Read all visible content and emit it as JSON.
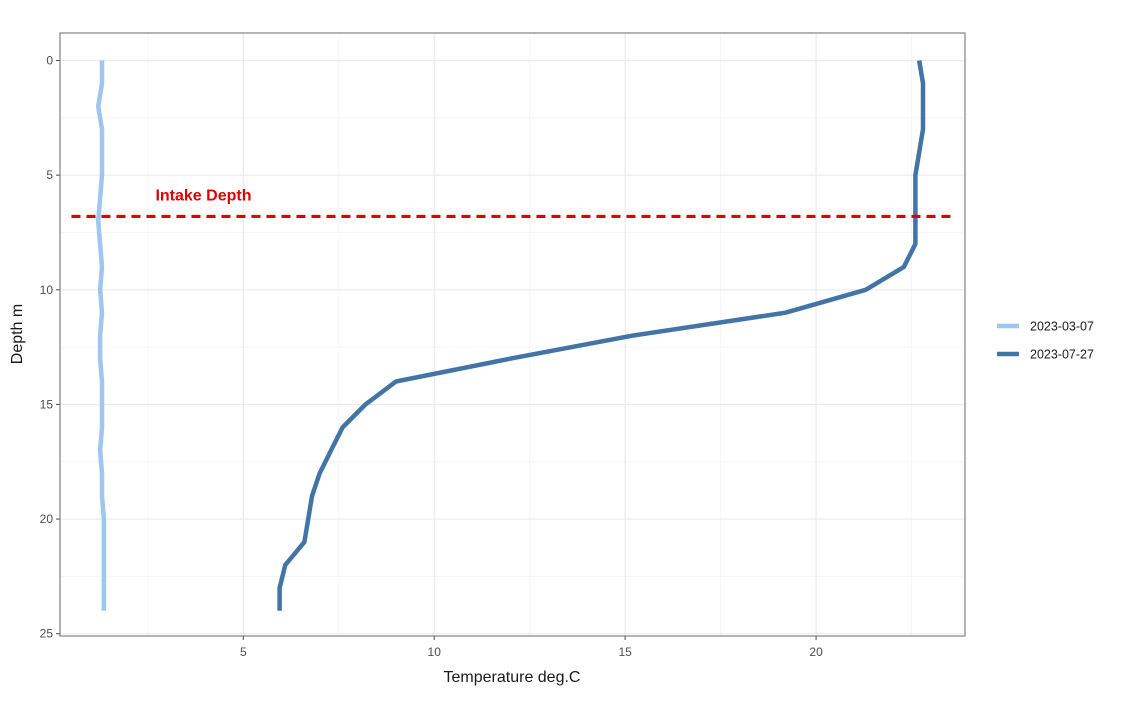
{
  "chart_data": {
    "type": "line",
    "title": "",
    "xlabel": "Temperature  deg.C",
    "ylabel": "Depth  m",
    "xlim": [
      0.2,
      23.9
    ],
    "ylim": [
      25.1,
      -1.2
    ],
    "y_reversed": true,
    "x_ticks": [
      5,
      10,
      15,
      20
    ],
    "x_tick_labels": [
      "5",
      "10",
      "15",
      "20"
    ],
    "y_ticks": [
      0,
      5,
      10,
      15,
      20,
      25
    ],
    "y_tick_labels": [
      "0",
      "5",
      "10",
      "15",
      "20",
      "25"
    ],
    "grid": true,
    "legend_position": "right",
    "series": [
      {
        "name": "2023-03-07",
        "color": "#9ec6ef",
        "points": [
          {
            "x": 1.3,
            "y": 0
          },
          {
            "x": 1.3,
            "y": 1
          },
          {
            "x": 1.2,
            "y": 2
          },
          {
            "x": 1.3,
            "y": 3
          },
          {
            "x": 1.3,
            "y": 4
          },
          {
            "x": 1.3,
            "y": 5
          },
          {
            "x": 1.25,
            "y": 6
          },
          {
            "x": 1.2,
            "y": 7
          },
          {
            "x": 1.25,
            "y": 8
          },
          {
            "x": 1.3,
            "y": 9
          },
          {
            "x": 1.25,
            "y": 10
          },
          {
            "x": 1.3,
            "y": 11
          },
          {
            "x": 1.25,
            "y": 12
          },
          {
            "x": 1.25,
            "y": 13
          },
          {
            "x": 1.3,
            "y": 14
          },
          {
            "x": 1.3,
            "y": 15
          },
          {
            "x": 1.3,
            "y": 16
          },
          {
            "x": 1.25,
            "y": 17
          },
          {
            "x": 1.3,
            "y": 18
          },
          {
            "x": 1.3,
            "y": 19
          },
          {
            "x": 1.35,
            "y": 20
          },
          {
            "x": 1.35,
            "y": 21
          },
          {
            "x": 1.35,
            "y": 22
          },
          {
            "x": 1.35,
            "y": 23
          },
          {
            "x": 1.35,
            "y": 24
          }
        ]
      },
      {
        "name": "2023-07-27",
        "color": "#4274a6",
        "points": [
          {
            "x": 22.7,
            "y": 0
          },
          {
            "x": 22.8,
            "y": 1
          },
          {
            "x": 22.8,
            "y": 2
          },
          {
            "x": 22.8,
            "y": 3
          },
          {
            "x": 22.7,
            "y": 4
          },
          {
            "x": 22.6,
            "y": 5
          },
          {
            "x": 22.6,
            "y": 6
          },
          {
            "x": 22.6,
            "y": 7
          },
          {
            "x": 22.6,
            "y": 8
          },
          {
            "x": 22.3,
            "y": 9
          },
          {
            "x": 21.3,
            "y": 10
          },
          {
            "x": 19.2,
            "y": 11
          },
          {
            "x": 15.2,
            "y": 12
          },
          {
            "x": 12.0,
            "y": 13
          },
          {
            "x": 9.0,
            "y": 14
          },
          {
            "x": 8.2,
            "y": 15
          },
          {
            "x": 7.6,
            "y": 16
          },
          {
            "x": 7.3,
            "y": 17
          },
          {
            "x": 7.0,
            "y": 18
          },
          {
            "x": 6.8,
            "y": 19
          },
          {
            "x": 6.7,
            "y": 20
          },
          {
            "x": 6.6,
            "y": 21
          },
          {
            "x": 6.1,
            "y": 22
          },
          {
            "x": 5.95,
            "y": 23
          },
          {
            "x": 5.95,
            "y": 24
          }
        ]
      }
    ],
    "reference_line": {
      "label": "Intake Depth",
      "y": 6.8,
      "x_from": 0.5,
      "x_to": 23.6,
      "color": "#e00000",
      "style": "dashed",
      "label_x": 2.7,
      "label_y": 6.1
    },
    "colors": {
      "panel_border": "#8c8c8c",
      "major_grid": "#ebebeb",
      "minor_grid": "#f4f4f4"
    }
  }
}
